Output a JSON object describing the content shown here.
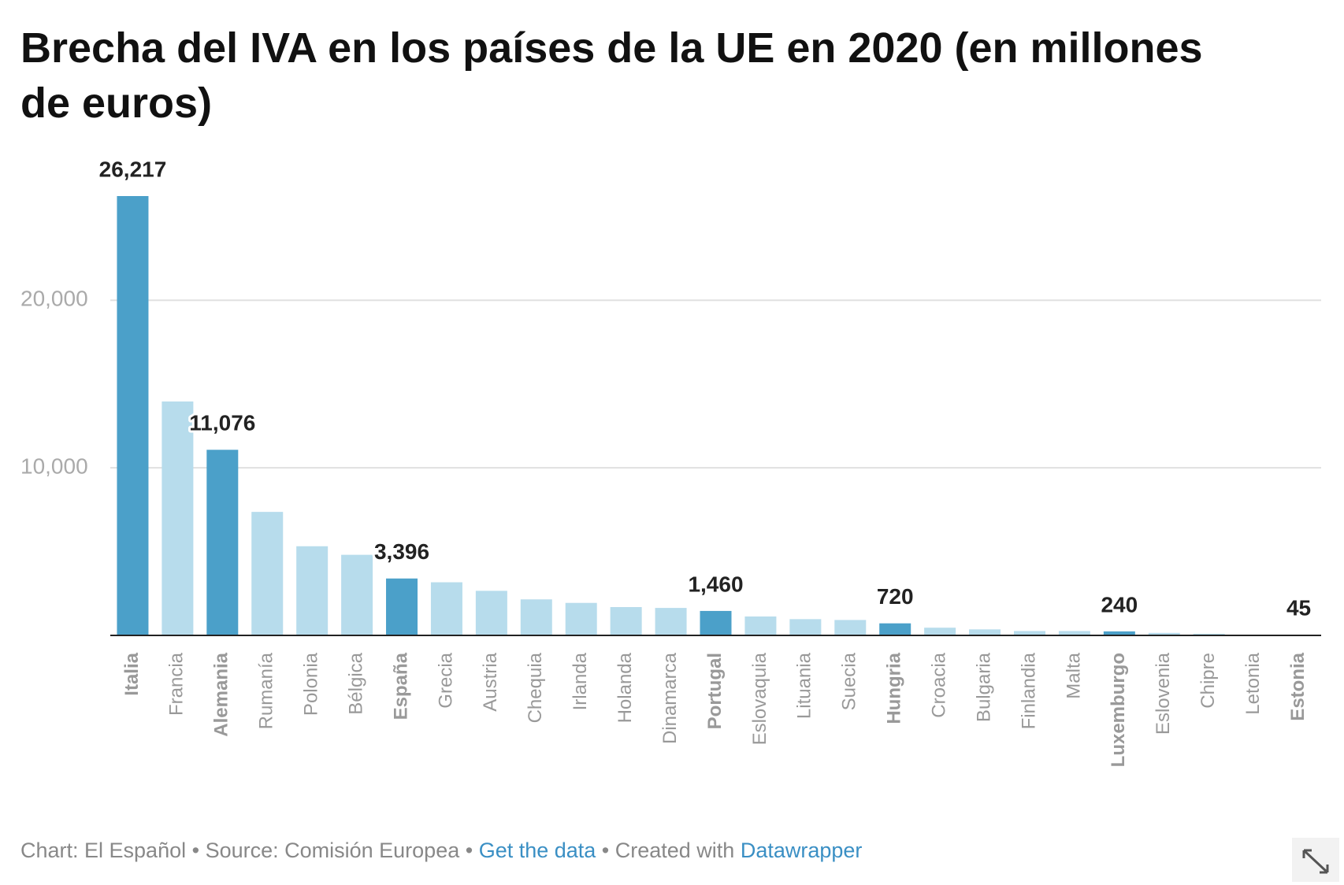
{
  "chart_data": {
    "type": "bar",
    "title": "Brecha del IVA en los países de la UE en 2020 (en millones de euros)",
    "categories": [
      "Italia",
      "Francia",
      "Alemania",
      "Rumanía",
      "Polonia",
      "Bélgica",
      "España",
      "Grecia",
      "Austria",
      "Chequia",
      "Irlanda",
      "Holanda",
      "Dinamarca",
      "Portugal",
      "Eslovaquia",
      "Lituania",
      "Suecia",
      "Hungria",
      "Croacia",
      "Bulgaria",
      "Finlandia",
      "Malta",
      "Luxemburgo",
      "Eslovenia",
      "Chipre",
      "Letonia",
      "Estonia"
    ],
    "values": [
      26217,
      13960,
      11076,
      7370,
      5320,
      4810,
      3396,
      3170,
      2660,
      2150,
      1940,
      1690,
      1640,
      1460,
      1130,
      970,
      920,
      720,
      460,
      360,
      260,
      260,
      240,
      150,
      100,
      30,
      45
    ],
    "value_labels": [
      "26,217",
      null,
      "11,076",
      null,
      null,
      null,
      "3,396",
      null,
      null,
      null,
      null,
      null,
      null,
      "1,460",
      null,
      null,
      null,
      "720",
      null,
      null,
      null,
      null,
      "240",
      null,
      null,
      null,
      "45"
    ],
    "colors": [
      "#4ba0c9",
      "#b7dcec",
      "#4ba0c9",
      "#b7dcec",
      "#b7dcec",
      "#b7dcec",
      "#4ba0c9",
      "#b7dcec",
      "#b7dcec",
      "#b7dcec",
      "#b7dcec",
      "#b7dcec",
      "#b7dcec",
      "#4ba0c9",
      "#b7dcec",
      "#b7dcec",
      "#b7dcec",
      "#4ba0c9",
      "#b7dcec",
      "#b7dcec",
      "#b7dcec",
      "#b7dcec",
      "#4ba0c9",
      "#b7dcec",
      "#b7dcec",
      "#b7dcec",
      "#4ba0c9"
    ],
    "ylim": [
      0,
      26217
    ],
    "yticks": [
      {
        "value": 10000,
        "label": "10,000"
      },
      {
        "value": 20000,
        "label": "20,000"
      }
    ],
    "grid": true,
    "footer": {
      "credit": "Chart: El Español • Source: Comisión Europea • ",
      "data_link": "Get the data",
      "created": " • Created with ",
      "tool_link": "Datawrapper"
    }
  }
}
